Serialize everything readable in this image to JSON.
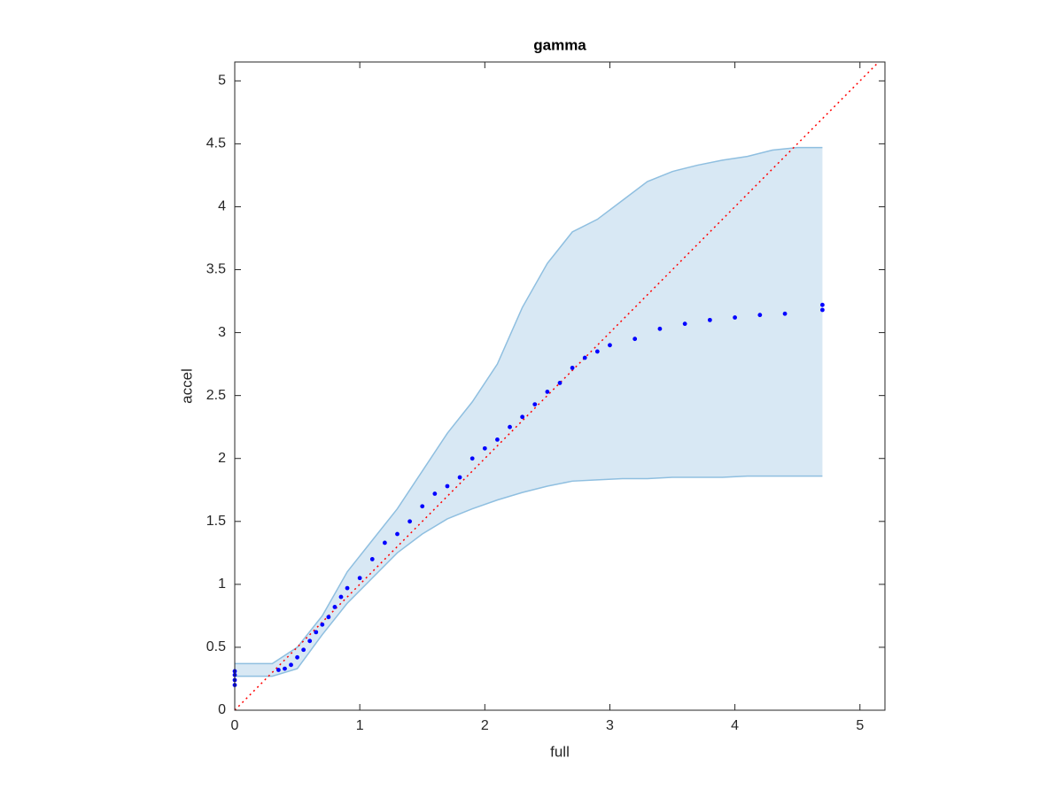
{
  "chart_data": {
    "type": "scatter",
    "title": "gamma",
    "x_label": "full",
    "y_label": "accel",
    "xlim": [
      0,
      5.2
    ],
    "ylim": [
      0,
      5.15
    ],
    "xticks": [
      0,
      1,
      2,
      3,
      4,
      5
    ],
    "yticks": [
      0,
      0.5,
      1,
      1.5,
      2,
      2.5,
      3,
      3.5,
      4,
      4.5,
      5
    ],
    "series": [
      {
        "color": "#0000ff",
        "x": [
          0,
          0,
          0,
          0,
          0.35,
          0.4,
          0.45,
          0.5,
          0.55,
          0.6,
          0.65,
          0.7,
          0.75,
          0.8,
          0.85,
          0.9,
          1.0,
          1.1,
          1.2,
          1.3,
          1.4,
          1.5,
          1.6,
          1.7,
          1.8,
          1.9,
          2.0,
          2.1,
          2.2,
          2.3,
          2.4,
          2.5,
          2.6,
          2.7,
          2.8,
          2.9,
          3.0,
          3.2,
          3.4,
          3.6,
          3.8,
          4.0,
          4.2,
          4.4,
          4.7,
          4.7
        ],
        "values": [
          0.2,
          0.24,
          0.28,
          0.31,
          0.32,
          0.33,
          0.36,
          0.42,
          0.48,
          0.55,
          0.62,
          0.68,
          0.74,
          0.82,
          0.9,
          0.97,
          1.05,
          1.2,
          1.33,
          1.4,
          1.5,
          1.62,
          1.72,
          1.78,
          1.85,
          2.0,
          2.08,
          2.15,
          2.25,
          2.33,
          2.43,
          2.53,
          2.6,
          2.72,
          2.8,
          2.85,
          2.9,
          2.95,
          3.03,
          3.07,
          3.1,
          3.12,
          3.14,
          3.15,
          3.18,
          3.22
        ]
      }
    ],
    "band": {
      "color": "#8fbfe0",
      "fill": "#d8e8f4",
      "x": [
        0,
        0.3,
        0.5,
        0.7,
        0.9,
        1.1,
        1.3,
        1.5,
        1.7,
        1.9,
        2.1,
        2.3,
        2.5,
        2.7,
        2.9,
        3.1,
        3.3,
        3.5,
        3.7,
        3.9,
        4.1,
        4.3,
        4.5,
        4.7
      ],
      "upper": [
        0.37,
        0.37,
        0.5,
        0.75,
        1.1,
        1.35,
        1.6,
        1.9,
        2.2,
        2.45,
        2.75,
        3.2,
        3.55,
        3.8,
        3.9,
        4.05,
        4.2,
        4.28,
        4.33,
        4.37,
        4.4,
        4.45,
        4.47,
        4.47
      ],
      "lower": [
        0.27,
        0.27,
        0.33,
        0.6,
        0.85,
        1.05,
        1.25,
        1.4,
        1.52,
        1.6,
        1.67,
        1.73,
        1.78,
        1.82,
        1.83,
        1.84,
        1.84,
        1.85,
        1.85,
        1.85,
        1.86,
        1.86,
        1.86,
        1.86
      ]
    },
    "reference_line": {
      "color": "#ff0000",
      "style": "dotted"
    }
  }
}
